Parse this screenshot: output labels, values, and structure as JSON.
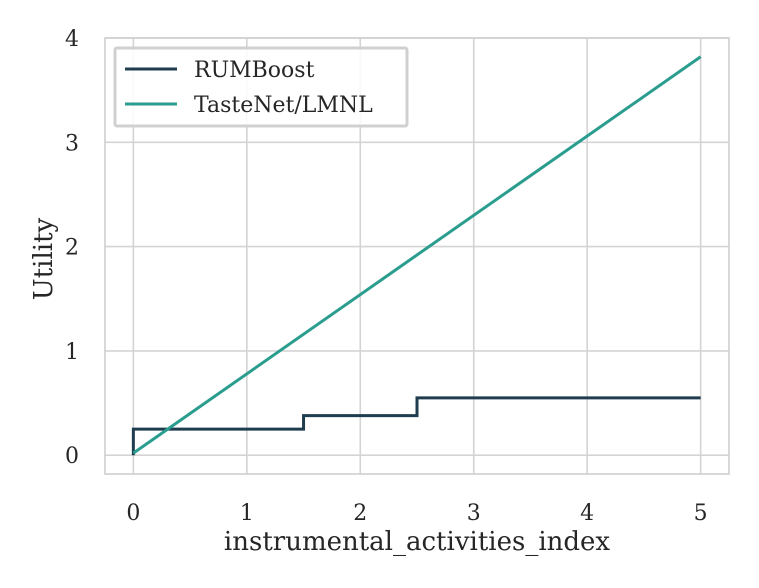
{
  "chart_data": {
    "type": "line",
    "xlabel": "instrumental_activities_index",
    "ylabel": "Utility",
    "xlim": [
      -0.25,
      5.25
    ],
    "ylim": [
      -0.18,
      4.0
    ],
    "xticks": [
      0,
      1,
      2,
      3,
      4,
      5
    ],
    "yticks": [
      0,
      1,
      2,
      3,
      4
    ],
    "xtick_labels": [
      "0",
      "1",
      "2",
      "3",
      "4",
      "5"
    ],
    "ytick_labels": [
      "0",
      "1",
      "2",
      "3",
      "4"
    ],
    "grid": true,
    "legend_position": "top-left",
    "series": [
      {
        "name": "RUMBoost",
        "color": "#1f3d4f",
        "style": "step",
        "points": [
          [
            0,
            0.0
          ],
          [
            0,
            0.25
          ],
          [
            1.5,
            0.25
          ],
          [
            1.5,
            0.38
          ],
          [
            2.5,
            0.38
          ],
          [
            2.5,
            0.55
          ],
          [
            5,
            0.55
          ]
        ]
      },
      {
        "name": "TasteNet/LMNL",
        "color": "#2a9d8f",
        "style": "line",
        "points": [
          [
            0,
            0.02
          ],
          [
            5,
            3.82
          ]
        ]
      }
    ]
  }
}
